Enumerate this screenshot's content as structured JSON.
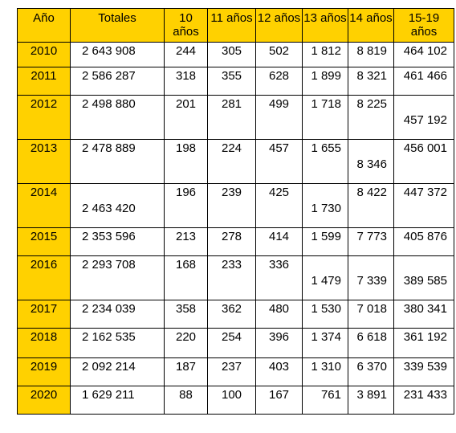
{
  "headers": [
    "Año",
    "Totales",
    "10 años",
    "11 años",
    "12 años",
    "13 años",
    "14 años",
    "15-19 años"
  ],
  "rows": [
    {
      "year": "2010",
      "total": "2 643 908",
      "a10": "244",
      "a11": "305",
      "a12": "502",
      "a13": "1 812",
      "a14": "8 819",
      "a15": "464 102"
    },
    {
      "year": "2011",
      "total": "2 586 287",
      "a10": "318",
      "a11": "355",
      "a12": "628",
      "a13": "1 899",
      "a14": "8 321",
      "a15": "461 466"
    },
    {
      "year": "2012",
      "total": "2 498 880",
      "a10": "201",
      "a11": "281",
      "a12": "499",
      "a13": "1 718",
      "a14": "8 225",
      "a15": "457 192"
    },
    {
      "year": "2013",
      "total": "2 478 889",
      "a10": "198",
      "a11": "224",
      "a12": "457",
      "a13": "1 655",
      "a14": "8 346",
      "a15": "456 001"
    },
    {
      "year": "2014",
      "total": "2 463 420",
      "a10": "196",
      "a11": "239",
      "a12": "425",
      "a13": "1 730",
      "a14": "8 422",
      "a15": "447 372"
    },
    {
      "year": "2015",
      "total": "2 353 596",
      "a10": "213",
      "a11": "278",
      "a12": "414",
      "a13": "1 599",
      "a14": "7 773",
      "a15": "405 876"
    },
    {
      "year": "2016",
      "total": "2 293 708",
      "a10": "168",
      "a11": "233",
      "a12": "336",
      "a13": "1 479",
      "a14": "7 339",
      "a15": "389 585"
    },
    {
      "year": "2017",
      "total": "2 234 039",
      "a10": "358",
      "a11": "362",
      "a12": "480",
      "a13": "1 530",
      "a14": "7 018",
      "a15": "380 341"
    },
    {
      "year": "2018",
      "total": "2 162 535",
      "a10": "220",
      "a11": "254",
      "a12": "396",
      "a13": "1 374",
      "a14": "6 618",
      "a15": "361 192"
    },
    {
      "year": "2019",
      "total": "2 092 214",
      "a10": "187",
      "a11": "237",
      "a12": "403",
      "a13": "1 310",
      "a14": "6 370",
      "a15": "339 539"
    },
    {
      "year": "2020",
      "total": "1 629 211",
      "a10": "88",
      "a11": "100",
      "a12": "167",
      "a13": "761",
      "a14": "3 891",
      "a15": "231 433"
    }
  ]
}
